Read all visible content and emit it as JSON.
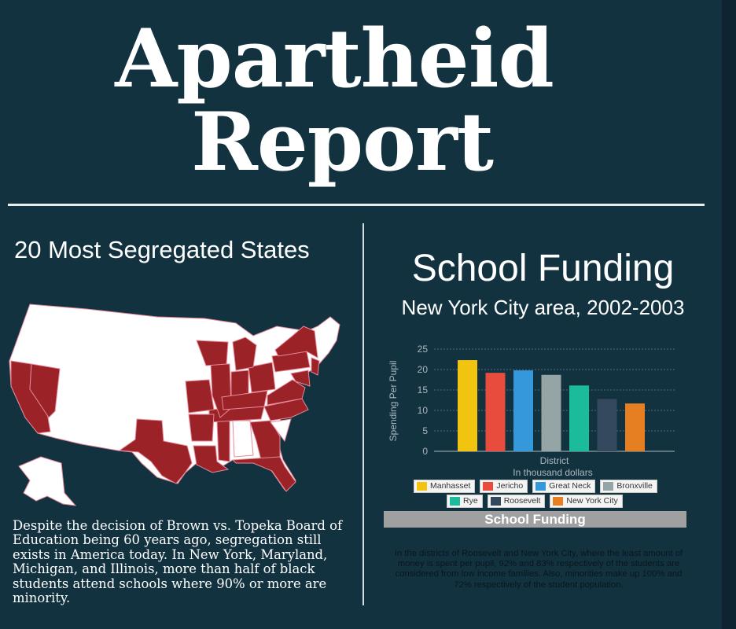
{
  "title": {
    "line1": "Apartheid",
    "line2": "Report"
  },
  "left": {
    "heading": "20 Most Segregated States",
    "body": "Despite the decision of Brown vs. Topeka Board of Education being 60 years ago, segregation still exists in America today.  In New York, Maryland, Michigan, and Illinois, more than half of black students attend schools where 90% or more are minority."
  },
  "right": {
    "heading": "School Funding",
    "subheading": "New York City area, 2002-2003",
    "footer_label": "School Funding",
    "footnote": "In the districts of Roosevelt and New York City, where the least amount of money is spent per pupil, 92% and 83% respectively of the students are considered from low income families.  Also, minorities make up 100% and 72% respectively of the student population."
  },
  "colors": {
    "background": "#133240",
    "segregated_state": "#9b2226",
    "other_state": "#ffffff",
    "state_border": "#e48a9a"
  },
  "chart_data": {
    "type": "bar",
    "categories": [
      "Manhasset",
      "Jericho",
      "Great Neck",
      "Bronxville",
      "Rye",
      "Roosevelt",
      "New York City"
    ],
    "values": [
      22.3,
      19.2,
      19.8,
      18.7,
      16.1,
      12.8,
      11.7
    ],
    "colors": [
      "#f1c40f",
      "#e74c3c",
      "#3498db",
      "#95a5a6",
      "#1abc9c",
      "#34495e",
      "#e67e22"
    ],
    "xlabel": "District",
    "xlabel2": "In thousand dollars",
    "ylabel": "Spending Per Pupil",
    "ylim": [
      0,
      25
    ],
    "yticks": [
      0,
      5,
      10,
      15,
      20,
      25
    ],
    "grid": true,
    "legend_position": "bottom"
  }
}
